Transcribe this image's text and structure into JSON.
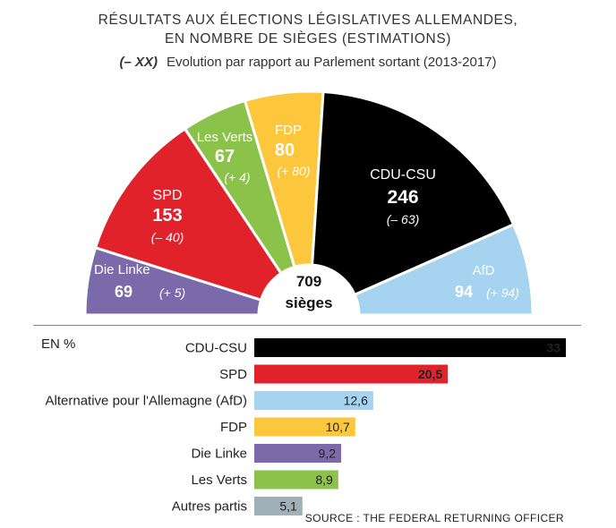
{
  "title_line1": "RÉSULTATS AUX ÉLECTIONS LÉGISLATIVES ALLEMANDES,",
  "title_line2": "EN NOMBRE DE SIÈGES (ESTIMATIONS)",
  "legend_key": "(– XX)",
  "legend_text": "Evolution par rapport au Parlement sortant (2013-2017)",
  "section_label": "EN %",
  "source": "SOURCE : THE FEDERAL RETURNING OFFICER",
  "chart_data": [
    {
      "type": "pie",
      "variant": "parliament-hemicycle",
      "center_label_value": "709",
      "center_label_unit": "sièges",
      "series": [
        {
          "name": "Die Linke",
          "seats": 69,
          "change": "(+ 5)",
          "color": "#7b6aa9"
        },
        {
          "name": "SPD",
          "seats": 153,
          "change": "(– 40)",
          "color": "#e2222b"
        },
        {
          "name": "Les Verts",
          "seats": 67,
          "change": "(+ 4)",
          "color": "#8bc34a"
        },
        {
          "name": "FDP",
          "seats": 80,
          "change": "(+ 80)",
          "color": "#fcc73d"
        },
        {
          "name": "CDU-CSU",
          "seats": 246,
          "change": "(– 63)",
          "color": "#000000"
        },
        {
          "name": "AfD",
          "seats": 94,
          "change": "(+ 94)",
          "color": "#a6d3ef"
        }
      ]
    },
    {
      "type": "bar",
      "orientation": "horizontal",
      "title": "EN %",
      "xlim": [
        0,
        33
      ],
      "categories": [
        "CDU-CSU",
        "SPD",
        "Alternative pour l'Allemagne (AfD)",
        "FDP",
        "Die Linke",
        "Les Verts",
        "Autres partis"
      ],
      "values": [
        33,
        20.5,
        12.6,
        10.7,
        9.2,
        8.9,
        5.1
      ],
      "value_labels": [
        "33",
        "20,5",
        "12,6",
        "10,7",
        "9,2",
        "8,9",
        "5,1"
      ],
      "colors": [
        "#000000",
        "#e2222b",
        "#a6d3ef",
        "#fcc73d",
        "#7b6aa9",
        "#8bc34a",
        "#9fb0b8"
      ],
      "value_label_colors": [
        "#ffffff",
        "#ffffff",
        "#222222",
        "#222222",
        "#222222",
        "#222222",
        "#222222"
      ]
    }
  ]
}
